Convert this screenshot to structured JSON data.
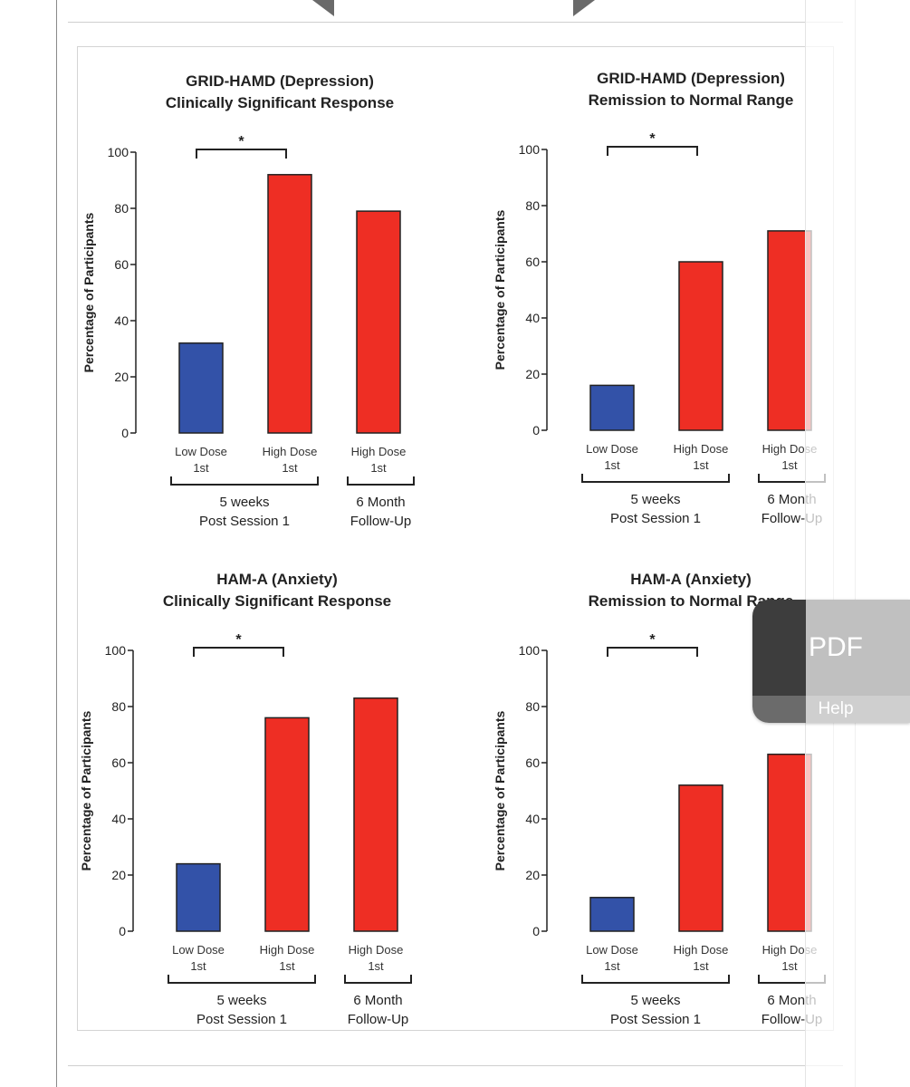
{
  "chart_data": [
    {
      "type": "bar",
      "title": "GRID-HAMD (Depression)",
      "subtitle": "Clinically Significant Response",
      "ylabel": "Percentage of Participants",
      "ylim": [
        0,
        100
      ],
      "yticks": [
        "0",
        "20",
        "40",
        "60",
        "80",
        "100"
      ],
      "categories": [
        {
          "line1": "Low Dose",
          "line2": "1st"
        },
        {
          "line1": "High Dose",
          "line2": "1st"
        },
        {
          "line1": "High Dose",
          "line2": "1st"
        }
      ],
      "values": [
        32,
        92,
        79
      ],
      "colors": [
        "#3352a8",
        "#ee2e24",
        "#ee2e24"
      ],
      "significance": "*",
      "groups": [
        {
          "line1": "5 weeks",
          "line2": "Post Session 1"
        },
        {
          "line1": "6 Month",
          "line2": "Follow-Up"
        }
      ],
      "grid": false
    },
    {
      "type": "bar",
      "title": "GRID-HAMD (Depression)",
      "subtitle": "Remission to Normal Range",
      "ylabel": "Percentage of Participants",
      "ylim": [
        0,
        100
      ],
      "yticks": [
        "0",
        "20",
        "40",
        "60",
        "80",
        "100"
      ],
      "categories": [
        {
          "line1": "Low Dose",
          "line2": "1st"
        },
        {
          "line1": "High Dose",
          "line2": "1st"
        },
        {
          "line1": "High Dose",
          "line2": "1st"
        }
      ],
      "values": [
        16,
        60,
        71
      ],
      "colors": [
        "#3352a8",
        "#ee2e24",
        "#ee2e24"
      ],
      "significance": "*",
      "groups": [
        {
          "line1": "5 weeks",
          "line2": "Post Session 1"
        },
        {
          "line1": "6 Month",
          "line2": "Follow-Up"
        }
      ],
      "grid": false
    },
    {
      "type": "bar",
      "title": "HAM-A (Anxiety)",
      "subtitle": "Clinically Significant Response",
      "ylabel": "Percentage of Participants",
      "ylim": [
        0,
        100
      ],
      "yticks": [
        "0",
        "20",
        "40",
        "60",
        "80",
        "100"
      ],
      "categories": [
        {
          "line1": "Low Dose",
          "line2": "1st"
        },
        {
          "line1": "High Dose",
          "line2": "1st"
        },
        {
          "line1": "High Dose",
          "line2": "1st"
        }
      ],
      "values": [
        24,
        76,
        83
      ],
      "colors": [
        "#3352a8",
        "#ee2e24",
        "#ee2e24"
      ],
      "significance": "*",
      "groups": [
        {
          "line1": "5 weeks",
          "line2": "Post Session 1"
        },
        {
          "line1": "6 Month",
          "line2": "Follow-Up"
        }
      ],
      "grid": false
    },
    {
      "type": "bar",
      "title": "HAM-A (Anxiety)",
      "subtitle": "Remission to Normal Range",
      "ylabel": "Percentage of Participants",
      "ylim": [
        0,
        100
      ],
      "yticks": [
        "0",
        "20",
        "40",
        "60",
        "80",
        "100"
      ],
      "categories": [
        {
          "line1": "Low Dose",
          "line2": "1st"
        },
        {
          "line1": "High Dose",
          "line2": "1st"
        },
        {
          "line1": "High Dose",
          "line2": "1st"
        }
      ],
      "values": [
        12,
        52,
        63
      ],
      "colors": [
        "#3352a8",
        "#ee2e24",
        "#ee2e24"
      ],
      "significance": "*",
      "groups": [
        {
          "line1": "5 weeks",
          "line2": "Post Session 1"
        },
        {
          "line1": "6 Month",
          "line2": "Follow-Up"
        }
      ],
      "grid": false
    }
  ],
  "pdf_widget": {
    "pdf_label": "PDF",
    "help_label": "Help"
  }
}
